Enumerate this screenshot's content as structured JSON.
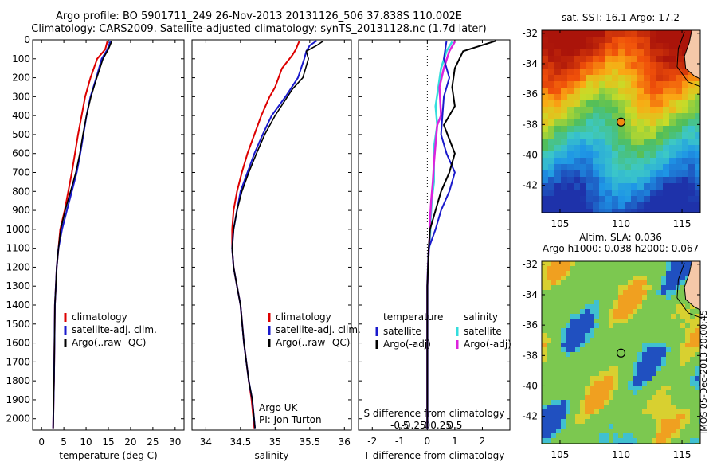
{
  "header": {
    "line1": "Argo profile: BO 5901711_249 26-Nov-2013 20131126_506 37.838S 110.002E",
    "line2": "Climatology: CARS2009. Satellite-adjusted climatology: synTS_20131128.nc (1.7d later)"
  },
  "stamp": "IMOS 05-Dec-2013 20:00:45",
  "colors": {
    "clim": "#dd0000",
    "sat": "#1a1acc",
    "argo": "#000000",
    "sat_s": "#33dddd",
    "argo_s": "#dd22dd"
  },
  "depth_axis": {
    "ylim": [
      0,
      2060
    ],
    "ticks": [
      0,
      100,
      200,
      300,
      400,
      500,
      600,
      700,
      800,
      900,
      1000,
      1100,
      1200,
      1300,
      1400,
      1500,
      1600,
      1700,
      1800,
      1900,
      2000
    ]
  },
  "panel_temperature": {
    "xlabel": "temperature (deg C)",
    "xlim": [
      -2,
      32
    ],
    "xticks": [
      0,
      5,
      10,
      15,
      20,
      25,
      30
    ],
    "legend": [
      "climatology",
      "satellite-adj. clim.",
      "Argo(..raw -QC)"
    ],
    "series": {
      "clim": [
        [
          14.8,
          5
        ],
        [
          14.3,
          50
        ],
        [
          12.5,
          100
        ],
        [
          11,
          200
        ],
        [
          9.8,
          300
        ],
        [
          9,
          400
        ],
        [
          8.2,
          500
        ],
        [
          7.5,
          600
        ],
        [
          6.8,
          700
        ],
        [
          6.0,
          800
        ],
        [
          5.2,
          900
        ],
        [
          4.2,
          1000
        ],
        [
          3.8,
          1100
        ],
        [
          3.4,
          1200
        ],
        [
          3.2,
          1300
        ],
        [
          3.0,
          1400
        ],
        [
          2.9,
          1600
        ],
        [
          2.8,
          1800
        ],
        [
          2.7,
          1900
        ],
        [
          2.6,
          2050
        ]
      ],
      "sat": [
        [
          15.5,
          5
        ],
        [
          14.8,
          50
        ],
        [
          13.5,
          100
        ],
        [
          12.3,
          200
        ],
        [
          11,
          300
        ],
        [
          10.1,
          400
        ],
        [
          9.4,
          500
        ],
        [
          8.7,
          600
        ],
        [
          7.9,
          700
        ],
        [
          6.8,
          800
        ],
        [
          5.7,
          900
        ],
        [
          4.6,
          1000
        ],
        [
          3.8,
          1100
        ],
        [
          3.4,
          1200
        ],
        [
          3.2,
          1300
        ],
        [
          3.0,
          1400
        ],
        [
          2.9,
          1600
        ],
        [
          2.8,
          1800
        ],
        [
          2.7,
          1900
        ],
        [
          2.6,
          2050
        ]
      ],
      "argo": [
        [
          15.8,
          5
        ],
        [
          15.0,
          50
        ],
        [
          13.8,
          100
        ],
        [
          12.4,
          200
        ],
        [
          11.1,
          300
        ],
        [
          10.1,
          400
        ],
        [
          9.3,
          500
        ],
        [
          8.6,
          600
        ],
        [
          7.7,
          700
        ],
        [
          6.5,
          800
        ],
        [
          5.3,
          900
        ],
        [
          4.3,
          1000
        ],
        [
          3.8,
          1100
        ],
        [
          3.4,
          1200
        ],
        [
          3.2,
          1300
        ],
        [
          3.0,
          1400
        ],
        [
          2.9,
          1600
        ],
        [
          2.8,
          1800
        ],
        [
          2.7,
          1900
        ],
        [
          2.6,
          2050
        ]
      ]
    }
  },
  "panel_salinity": {
    "xlabel": "salinity",
    "xlim": [
      33.8,
      36.1
    ],
    "xticks": [
      34,
      34.5,
      35,
      35.5,
      36
    ],
    "legend": [
      "climatology",
      "satellite-adj. clim.",
      "Argo(..raw -QC)"
    ],
    "note": [
      "Argo UK",
      "PI: Jon Turton"
    ],
    "series": {
      "clim": [
        [
          35.35,
          5
        ],
        [
          35.3,
          50
        ],
        [
          35.25,
          80
        ],
        [
          35.1,
          150
        ],
        [
          35,
          250
        ],
        [
          34.92,
          300
        ],
        [
          34.8,
          400
        ],
        [
          34.7,
          500
        ],
        [
          34.6,
          600
        ],
        [
          34.52,
          700
        ],
        [
          34.45,
          800
        ],
        [
          34.4,
          900
        ],
        [
          34.38,
          1000
        ],
        [
          34.38,
          1100
        ],
        [
          34.4,
          1200
        ],
        [
          34.45,
          1300
        ],
        [
          34.5,
          1400
        ],
        [
          34.55,
          1600
        ],
        [
          34.62,
          1800
        ],
        [
          34.66,
          1900
        ],
        [
          34.7,
          2050
        ]
      ],
      "sat": [
        [
          35.6,
          5
        ],
        [
          35.5,
          30
        ],
        [
          35.45,
          60
        ],
        [
          35.42,
          100
        ],
        [
          35.33,
          200
        ],
        [
          35.15,
          300
        ],
        [
          34.95,
          400
        ],
        [
          34.82,
          500
        ],
        [
          34.7,
          600
        ],
        [
          34.6,
          700
        ],
        [
          34.5,
          800
        ],
        [
          34.45,
          900
        ],
        [
          34.4,
          1000
        ],
        [
          34.38,
          1100
        ],
        [
          34.4,
          1200
        ],
        [
          34.45,
          1300
        ],
        [
          34.5,
          1400
        ],
        [
          34.55,
          1600
        ],
        [
          34.62,
          1800
        ],
        [
          34.67,
          1900
        ],
        [
          34.71,
          2050
        ]
      ],
      "argo": [
        [
          35.7,
          5
        ],
        [
          35.6,
          30
        ],
        [
          35.45,
          60
        ],
        [
          35.48,
          100
        ],
        [
          35.4,
          200
        ],
        [
          35.25,
          260
        ],
        [
          35.0,
          400
        ],
        [
          34.85,
          500
        ],
        [
          34.73,
          600
        ],
        [
          34.62,
          700
        ],
        [
          34.52,
          800
        ],
        [
          34.45,
          900
        ],
        [
          34.4,
          1000
        ],
        [
          34.38,
          1100
        ],
        [
          34.4,
          1200
        ],
        [
          34.45,
          1300
        ],
        [
          34.5,
          1400
        ],
        [
          34.55,
          1600
        ],
        [
          34.62,
          1800
        ],
        [
          34.67,
          1900
        ],
        [
          34.71,
          2050
        ]
      ]
    }
  },
  "panel_difference": {
    "xlabel": "T difference from climatology",
    "xlabel2": "S difference from climatology",
    "xlim": [
      -2.5,
      3.0
    ],
    "xticks": [
      -2,
      -1,
      0,
      1,
      2
    ],
    "xticks2_values": [
      -0.5,
      -0.25,
      0,
      0.25,
      0.5
    ],
    "xticks2_labels": [
      "-0.5",
      "-0.25",
      "0",
      "0.25",
      "0.5"
    ],
    "legend_t": [
      "temperature",
      "satellite",
      "Argo(-adj)"
    ],
    "legend_s": [
      "salinity",
      "satellite",
      "Argo(-adj)"
    ],
    "series": {
      "t_sat": [
        [
          0.7,
          5
        ],
        [
          0.6,
          100
        ],
        [
          0.8,
          200
        ],
        [
          0.6,
          300
        ],
        [
          0.5,
          500
        ],
        [
          0.7,
          600
        ],
        [
          1.0,
          700
        ],
        [
          0.8,
          800
        ],
        [
          0.5,
          900
        ],
        [
          0.3,
          1000
        ],
        [
          0.05,
          1100
        ],
        [
          0,
          1300
        ],
        [
          0,
          2050
        ]
      ],
      "t_argo": [
        [
          2.5,
          5
        ],
        [
          1.3,
          60
        ],
        [
          1.0,
          150
        ],
        [
          0.9,
          250
        ],
        [
          1.0,
          350
        ],
        [
          0.6,
          450
        ],
        [
          1.0,
          600
        ],
        [
          0.8,
          700
        ],
        [
          0.5,
          800
        ],
        [
          0.3,
          900
        ],
        [
          0.1,
          1000
        ],
        [
          0.05,
          1100
        ],
        [
          0,
          1300
        ],
        [
          0,
          2050
        ]
      ],
      "s_sat": [
        [
          0.45,
          10
        ],
        [
          0.35,
          60
        ],
        [
          0.25,
          150
        ],
        [
          0.2,
          250
        ],
        [
          0.15,
          350
        ],
        [
          0.18,
          450
        ],
        [
          0.13,
          550
        ],
        [
          0.12,
          650
        ],
        [
          0.12,
          750
        ],
        [
          0.08,
          850
        ],
        [
          0.06,
          950
        ],
        [
          0.05,
          1050
        ],
        [
          0.02,
          1150
        ],
        [
          0,
          1300
        ],
        [
          0,
          2050
        ]
      ],
      "s_argo": [
        [
          0.5,
          10
        ],
        [
          0.4,
          60
        ],
        [
          0.3,
          150
        ],
        [
          0.22,
          250
        ],
        [
          0.25,
          400
        ],
        [
          0.18,
          450
        ],
        [
          0.15,
          550
        ],
        [
          0.12,
          650
        ],
        [
          0.1,
          750
        ],
        [
          0.07,
          850
        ],
        [
          0.05,
          950
        ],
        [
          0.04,
          1050
        ],
        [
          0.02,
          1150
        ],
        [
          0,
          1300
        ],
        [
          0,
          2050
        ]
      ]
    }
  },
  "map_sst": {
    "title": "sat. SST: 16.1  Argo: 17.2",
    "xlim": [
      103.5,
      116.5
    ],
    "ylim": [
      -43.8,
      -31.8
    ],
    "xticks": [
      105,
      110,
      115
    ],
    "yticks": [
      -32,
      -34,
      -36,
      -38,
      -40,
      -42
    ],
    "argo_point": [
      110.0,
      -37.84
    ]
  },
  "map_sla": {
    "title1": "Altim. SLA: 0.036",
    "title2": "Argo h1000: 0.038 h2000: 0.067",
    "xlim": [
      103.5,
      116.5
    ],
    "ylim": [
      -43.8,
      -31.8
    ],
    "xticks": [
      105,
      110,
      115
    ],
    "yticks": [
      -32,
      -34,
      -36,
      -38,
      -40,
      -42
    ],
    "argo_point": [
      110.0,
      -37.84
    ]
  }
}
